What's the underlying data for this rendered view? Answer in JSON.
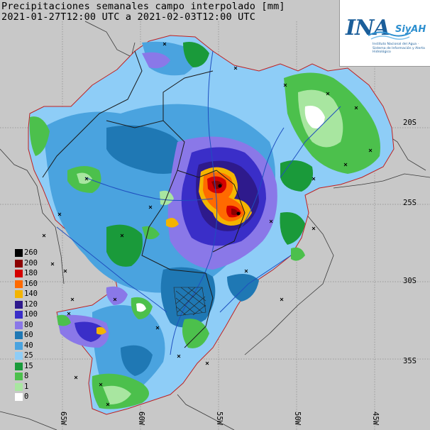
{
  "title": {
    "line1": "Precipitaciones semanales campo interpolado [mm]",
    "line2": "2021-01-27T12:00 UTC a 2021-02-03T12:00 UTC"
  },
  "logo": {
    "main": "INA",
    "sub": "SiyAH",
    "caption": "Instituto Nacional del Agua · Sistema de Información y Alerta Hidrológico"
  },
  "legend": [
    {
      "label": "260",
      "color": "#000000"
    },
    {
      "label": "200",
      "color": "#8b0000"
    },
    {
      "label": "180",
      "color": "#d40000"
    },
    {
      "label": "160",
      "color": "#ff6a00"
    },
    {
      "label": "140",
      "color": "#f4b400"
    },
    {
      "label": "120",
      "color": "#2e1a8c"
    },
    {
      "label": "100",
      "color": "#3a2ec8"
    },
    {
      "label": "80",
      "color": "#8a78e8"
    },
    {
      "label": "60",
      "color": "#1f78b4"
    },
    {
      "label": "40",
      "color": "#4aa3df"
    },
    {
      "label": "25",
      "color": "#8ecdf7"
    },
    {
      "label": "15",
      "color": "#1a9a3a"
    },
    {
      "label": "8",
      "color": "#4cc04c"
    },
    {
      "label": "1",
      "color": "#a8e6a0"
    },
    {
      "label": "0",
      "color": "#ffffff"
    }
  ],
  "lat_labels": [
    "20S",
    "25S",
    "30S",
    "35S"
  ],
  "lon_labels": [
    "65W",
    "60W",
    "55W",
    "50W",
    "45W"
  ]
}
